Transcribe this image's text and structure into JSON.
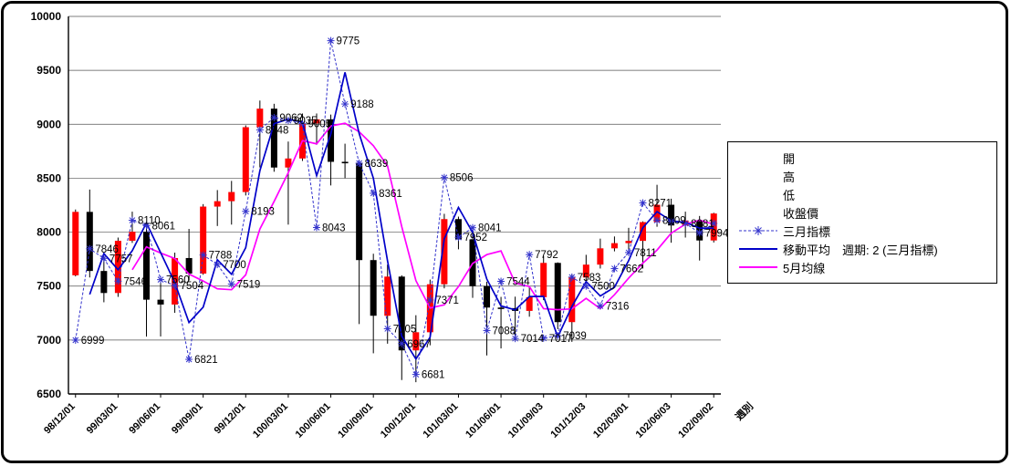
{
  "chart_data": {
    "type": "candlestick",
    "title": "",
    "ylim": [
      6500,
      10000
    ],
    "ytick_interval": 500,
    "y_tick_labels": [
      "6500",
      "7000",
      "7500",
      "8000",
      "8500",
      "9000",
      "9500",
      "10000"
    ],
    "x_tick_labels": [
      "98/12/01",
      "99/03/01",
      "99/06/01",
      "99/09/01",
      "99/12/01",
      "100/03/01",
      "100/06/01",
      "100/09/01",
      "100/12/01",
      "101/03/01",
      "101/06/01",
      "101/09/03",
      "101/12/03",
      "102/03/01",
      "102/06/03",
      "102/09/02"
    ],
    "x_tick_every": 3,
    "x_axis_title": "週別",
    "candles": {
      "names": [
        "開",
        "高",
        "低",
        "收盤價"
      ],
      "open": [
        7600,
        8188,
        7640,
        7436,
        7920,
        8004,
        7374,
        7329,
        7760,
        7616,
        8237,
        8287,
        8372,
        8973,
        9145,
        8599,
        8683,
        9008,
        9046,
        8652,
        8644,
        7741,
        7225,
        7588,
        6904,
        7072,
        7517,
        8121,
        7933,
        7501,
        7301,
        7296,
        7270,
        7397,
        7715,
        7166,
        7580,
        7699,
        7850,
        7898,
        7919,
        8093,
        8254,
        8062,
        8108,
        7923
      ],
      "high": [
        8210,
        8395,
        7780,
        7950,
        8190,
        8090,
        7540,
        7810,
        8030,
        8260,
        8390,
        8475,
        8990,
        9220,
        9190,
        8840,
        9100,
        9100,
        9090,
        8820,
        8650,
        7800,
        7700,
        7600,
        7230,
        7560,
        8170,
        8144,
        7980,
        7541,
        7400,
        7402,
        7500,
        7780,
        7720,
        7610,
        7790,
        7940,
        7960,
        8040,
        8100,
        8439,
        8310,
        8190,
        8150,
        8180
      ],
      "low": [
        7590,
        7580,
        7350,
        7400,
        7900,
        7032,
        7033,
        7252,
        7551,
        7605,
        8057,
        8070,
        8340,
        8600,
        8560,
        8070,
        8660,
        8810,
        8433,
        8500,
        7148,
        6877,
        6966,
        6629,
        6609,
        6951,
        7479,
        7841,
        7391,
        6857,
        6922,
        6999,
        7216,
        7370,
        7100,
        6983,
        7520,
        7663,
        7822,
        7830,
        7663,
        8050,
        7902,
        7950,
        7737,
        7904
      ],
      "close": [
        8188,
        7640,
        7436,
        7920,
        8004,
        7374,
        7329,
        7760,
        7616,
        8237,
        8287,
        8372,
        8973,
        9145,
        8599,
        8683,
        9008,
        9046,
        8652,
        8644,
        7741,
        7225,
        7588,
        6904,
        7072,
        7517,
        8121,
        7933,
        7501,
        7301,
        7296,
        7270,
        7397,
        7715,
        7166,
        7580,
        7699,
        7850,
        7898,
        7919,
        8093,
        8254,
        8062,
        8108,
        7923,
        8173
      ]
    },
    "indicator": {
      "name": "三月指標",
      "values": [
        6999,
        7846,
        7757,
        7546,
        8110,
        8061,
        7560,
        7504,
        6821,
        7788,
        7700,
        7519,
        8193,
        8948,
        9062,
        9035,
        9005,
        8043,
        9775,
        9188,
        8639,
        8361,
        7105,
        6967,
        6681,
        7371,
        8506,
        7952,
        8041,
        7088,
        7544,
        7014,
        7792,
        7017,
        7039,
        7583,
        7500,
        7316,
        7662,
        7811,
        8271,
        8109,
        null,
        8081,
        7994,
        null
      ],
      "line_values": [
        6999,
        7846,
        7757,
        7546,
        8110,
        8061,
        7560,
        7504,
        6821,
        7788,
        7700,
        7519,
        8193,
        8948,
        9062,
        9035,
        9005,
        8043,
        9775,
        9188,
        8639,
        8361,
        7105,
        6967,
        6681,
        7371,
        8506,
        7952,
        8041,
        7088,
        7544,
        7014,
        7792,
        7017,
        7039,
        7583,
        7500,
        7316,
        7662,
        7811,
        8271,
        8109,
        8100,
        8081,
        7994,
        8081
      ],
      "point_labels": [
        "6999",
        "7846",
        "7757",
        "7546",
        "8110",
        "8061",
        "7560",
        "7504",
        "6821",
        "7788",
        "7700",
        "7519",
        "8193",
        "8948",
        "9062",
        "9035",
        "9005",
        "8043",
        "9775",
        "9188",
        "8639",
        "8361",
        "7105",
        "6967",
        "6681",
        "7371",
        "8506",
        "7952",
        "8041",
        "7088",
        "7544",
        "7014",
        "7792",
        "7017",
        "7039",
        "7583",
        "7500",
        "7316",
        "7662",
        "7811",
        "8271",
        "8109",
        null,
        "8081",
        "7994",
        null
      ]
    },
    "moving_average": {
      "name": "移動平均　週期: 2 (三月指標)",
      "period": 2,
      "source": "三月指標"
    },
    "ma5": {
      "name": "5月均線",
      "period": 5
    },
    "colors": {
      "up": "#FF0000",
      "down": "#000000",
      "indicator": "#3333CC",
      "moving_average": "#0000C8",
      "ma5": "#FF00FF",
      "grid": "#555555",
      "axis": "#000000",
      "label_text": "#000000"
    }
  },
  "legend": {
    "items": [
      {
        "label": "開"
      },
      {
        "label": "高"
      },
      {
        "label": "低"
      },
      {
        "label": "收盤價"
      },
      {
        "label": "三月指標"
      },
      {
        "label": "移動平均　週期: 2 (三月指標)"
      },
      {
        "label": "5月均線"
      }
    ]
  }
}
